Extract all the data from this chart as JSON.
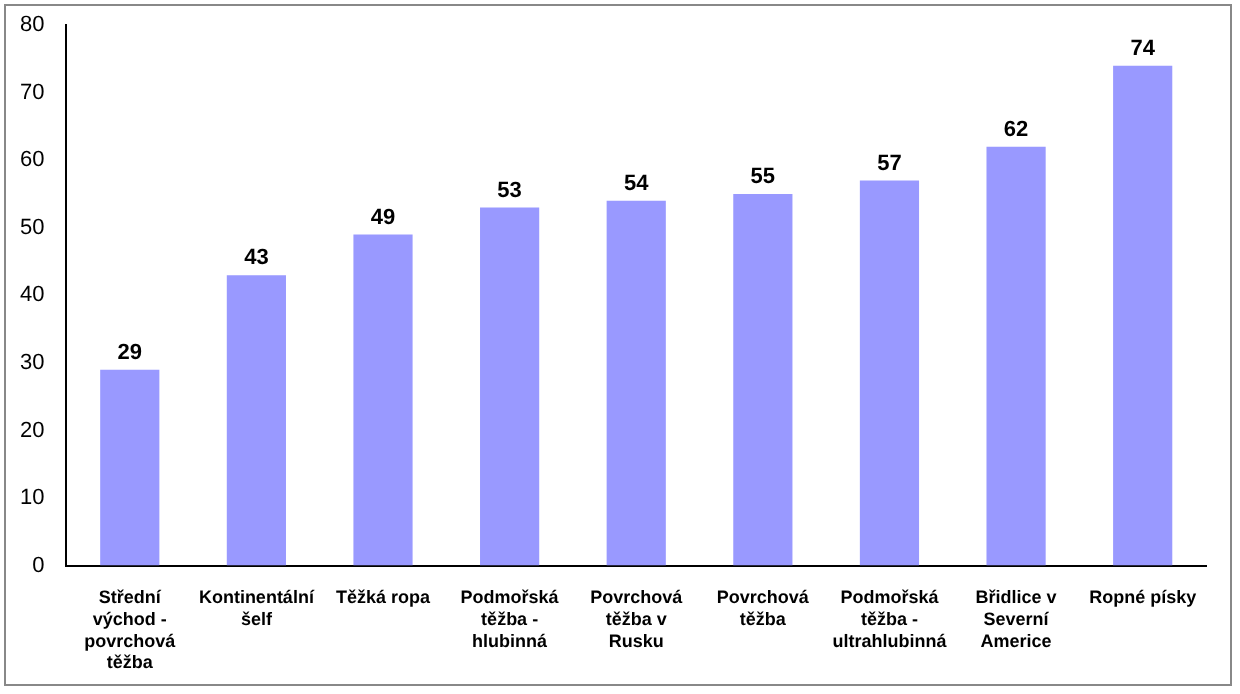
{
  "chart_data": {
    "type": "bar",
    "categories": [
      "Střední východ - povrchová těžba",
      "Kontinentální šelf",
      "Těžká ropa",
      "Podmořská těžba - hlubinná",
      "Povrchová těžba v Rusku",
      "Povrchová těžba",
      "Podmořská těžba - ultrahlubinná",
      "Břidlice v Severní Americe",
      "Ropné písky"
    ],
    "values": [
      29,
      43,
      49,
      53,
      54,
      55,
      57,
      62,
      74
    ],
    "color": "#9999ff",
    "ylim": [
      0,
      80
    ],
    "yticks": [
      0,
      10,
      20,
      30,
      40,
      50,
      60,
      70,
      80
    ],
    "grid": false,
    "legend": false,
    "data_labels": true
  }
}
